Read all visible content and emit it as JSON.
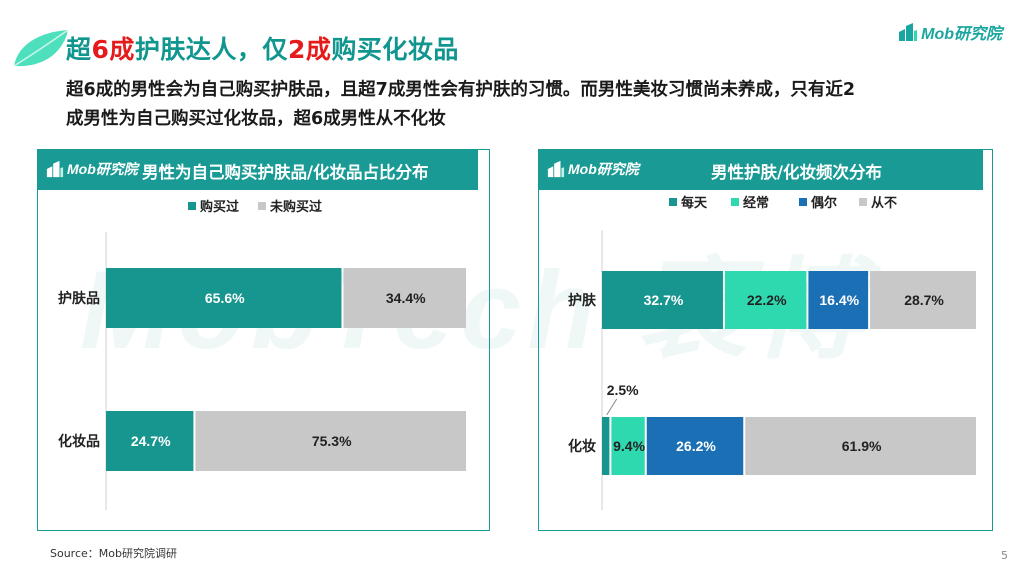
{
  "header": {
    "title_parts": [
      "超",
      "6成",
      "护肤达人，仅",
      "2成",
      "购买化妆品"
    ],
    "subtitle_line1": "超6成的男性会为自己购买护肤品，且超7成男性会有护肤的习惯。而男性美妆习惯尚未养成，只有近2",
    "subtitle_line2": "成男性为自己购买过化妆品，超6成男性从不化妆",
    "logo": "Mob研究院"
  },
  "watermark": "MobTech 袤博",
  "footer": {
    "source": "Source：Mob研究院调研",
    "page": "5"
  },
  "colors": {
    "teal": "#1a9a94",
    "title_teal": "#11958f",
    "red": "#e51a1a",
    "daily": "#17968f",
    "often": "#2fd9b0",
    "occasional": "#1b6fb5",
    "never": "#c8c8c8"
  },
  "chart_data": [
    {
      "type": "bar",
      "orientation": "horizontal",
      "stacked": true,
      "title": "男性为自己购买护肤品/化妆品占比分布",
      "categories": [
        "护肤品",
        "化妆品"
      ],
      "series": [
        {
          "name": "购买过",
          "values": [
            65.6,
            24.7
          ],
          "color": "#17968f"
        },
        {
          "name": "未购买过",
          "values": [
            34.4,
            75.3
          ],
          "color": "#c8c8c8"
        }
      ],
      "data_labels": [
        [
          "65.6%",
          "24.7%"
        ],
        [
          "34.4%",
          "75.3%"
        ]
      ],
      "xlim": [
        0,
        100
      ],
      "legend": "top",
      "grid": false
    },
    {
      "type": "bar",
      "orientation": "horizontal",
      "stacked": true,
      "title": "男性护肤/化妆频次分布",
      "categories": [
        "护肤",
        "化妆"
      ],
      "series": [
        {
          "name": "每天",
          "values": [
            32.7,
            2.5
          ],
          "color": "#17968f"
        },
        {
          "name": "经常",
          "values": [
            22.2,
            9.4
          ],
          "color": "#2fd9b0"
        },
        {
          "name": "偶尔",
          "values": [
            16.4,
            26.2
          ],
          "color": "#1b6fb5"
        },
        {
          "name": "从不",
          "values": [
            28.7,
            61.9
          ],
          "color": "#c8c8c8"
        }
      ],
      "data_labels": [
        [
          "32.7%",
          "2.5%"
        ],
        [
          "22.2%",
          "9.4%"
        ],
        [
          "16.4%",
          "26.2%"
        ],
        [
          "28.7%",
          "61.9%"
        ]
      ],
      "xlim": [
        0,
        100
      ],
      "legend": "top",
      "grid": false
    }
  ]
}
